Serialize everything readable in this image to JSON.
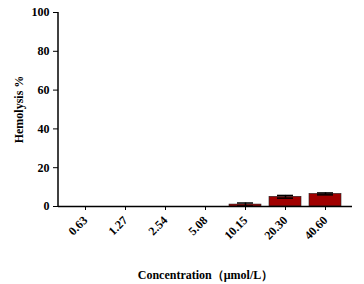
{
  "chart_data": {
    "type": "bar",
    "categories": [
      "0.63",
      "1.27",
      "2.54",
      "5.08",
      "10.15",
      "20.30",
      "40.60"
    ],
    "values": [
      0,
      0,
      0,
      0,
      1,
      5,
      6.5
    ],
    "errors": [
      0,
      0,
      0,
      0,
      0.8,
      0.7,
      0.5
    ],
    "color": "#a00000",
    "x_label": "Concentration（μmol/L）",
    "y_label": "Hemolysis %",
    "ylim": [
      0,
      100
    ],
    "yticks": [
      0,
      20,
      40,
      60,
      80,
      100
    ],
    "grid": false
  }
}
